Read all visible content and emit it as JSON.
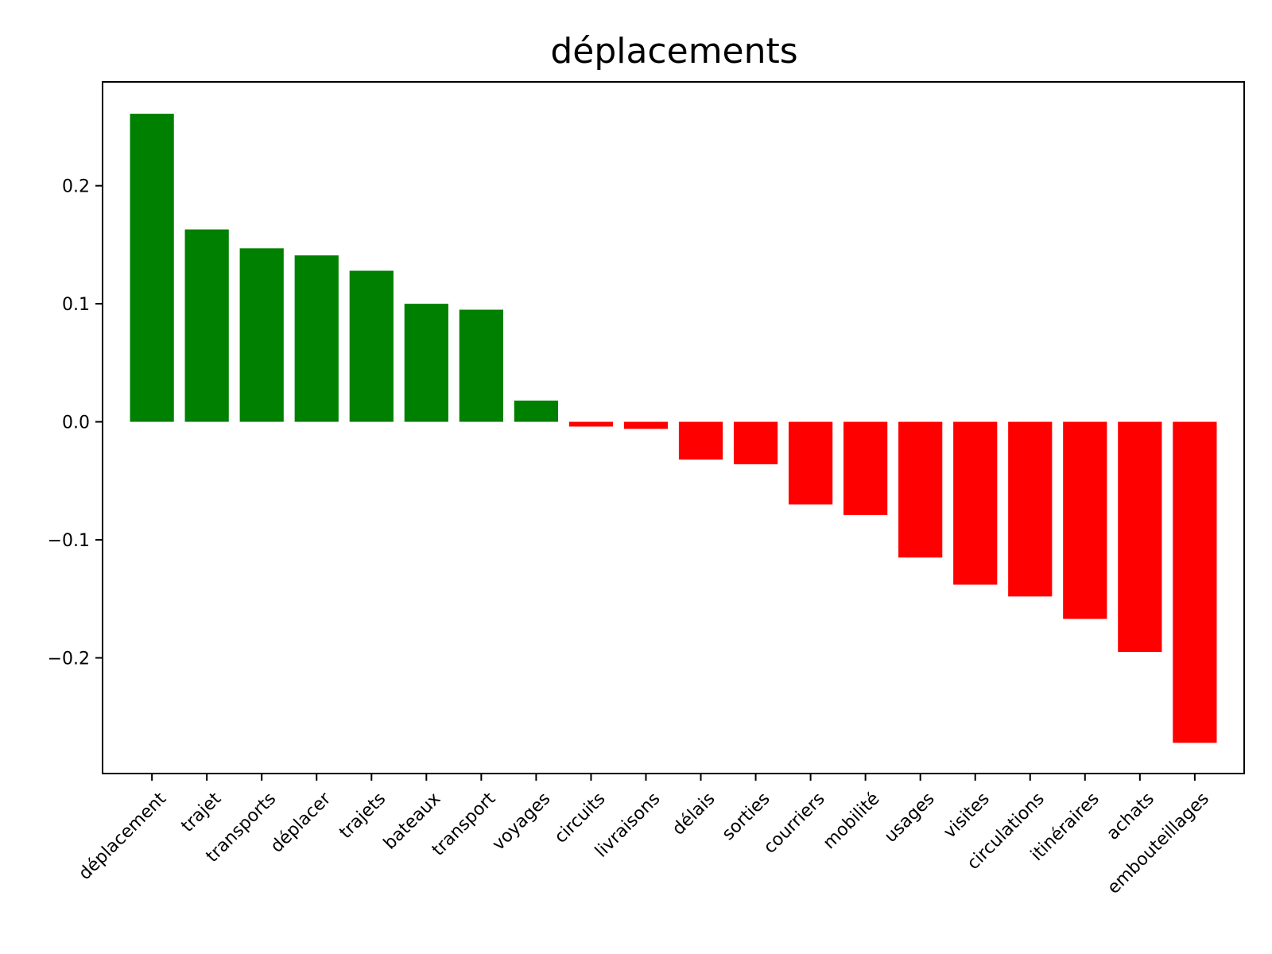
{
  "chart_data": {
    "type": "bar",
    "title": "déplacements",
    "xlabel": "",
    "ylabel": "",
    "categories": [
      "déplacement",
      "trajet",
      "transports",
      "déplacer",
      "trajets",
      "bateaux",
      "transport",
      "voyages",
      "circuits",
      "livraisons",
      "délais",
      "sorties",
      "courriers",
      "mobilité",
      "usages",
      "visites",
      "circulations",
      "itinéraires",
      "achats",
      "embouteillages"
    ],
    "values": [
      0.261,
      0.163,
      0.147,
      0.141,
      0.128,
      0.1,
      0.095,
      0.018,
      -0.004,
      -0.006,
      -0.032,
      -0.036,
      -0.07,
      -0.079,
      -0.115,
      -0.138,
      -0.148,
      -0.167,
      -0.195,
      -0.272
    ],
    "ylim": [
      -0.298,
      0.288
    ],
    "yticks": [
      -0.2,
      -0.1,
      0.0,
      0.1,
      0.2
    ],
    "ytick_labels": [
      "−0.2",
      "−0.1",
      "0.0",
      "0.1",
      "0.2"
    ],
    "positive_color": "#008000",
    "negative_color": "#ff0000",
    "grid": false,
    "legend": "none"
  }
}
